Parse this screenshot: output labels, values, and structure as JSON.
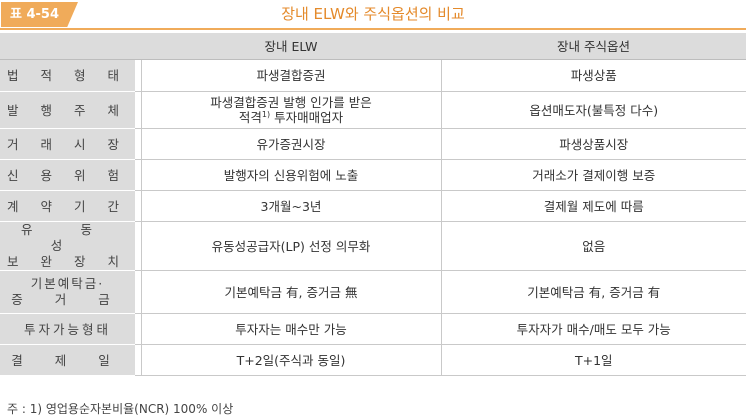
{
  "header": {
    "badge": "표 4-54",
    "title": "장내 ELW와 주식옵션의 비교"
  },
  "table": {
    "columns": [
      "",
      "장내 ELW",
      "장내 주식옵션"
    ],
    "rows": [
      {
        "label": "법 적 형 태",
        "elw": "파생결합증권",
        "option": "파생상품"
      },
      {
        "label": "발 행 주 체",
        "elw_line1": "파생결합증권 발행 인가를 받은",
        "elw_line2_a": "적격",
        "elw_sup": "1)",
        "elw_line2_b": " 투자매매업자",
        "option": "옵션매도자(불특정 다수)"
      },
      {
        "label": "거 래 시 장",
        "elw": "유가증권시장",
        "option": "파생상품시장"
      },
      {
        "label": "신 용 위 험",
        "elw": "발행자의 신용위험에 노출",
        "option": "거래소가 결제이행 보증"
      },
      {
        "label": "계 약 기 간",
        "elw": "3개월~3년",
        "option": "결제월 제도에 따름"
      },
      {
        "label_line1": "유 동 성",
        "label_line2": "보 완 장 치",
        "elw": "유동성공급자(LP) 선정 의무화",
        "option": "없음"
      },
      {
        "label_line1": "기본예탁금·",
        "label_line2": "증 거 금",
        "elw": "기본예탁금 有, 증거금 無",
        "option": "기본예탁금 有, 증거금 有"
      },
      {
        "label": "투자가능형태",
        "elw": "투자자는 매수만 가능",
        "option": "투자자가 매수/매도 모두 가능"
      },
      {
        "label": "결 제 일",
        "elw": "T+2일(주식과 동일)",
        "option": "T+1일"
      }
    ]
  },
  "footnote": "주 : 1) 영업용순자본비율(NCR) 100% 이상",
  "colors": {
    "accent": "#f0ab5a",
    "title": "#e48a2b",
    "label_bg": "#dcdcdc"
  }
}
